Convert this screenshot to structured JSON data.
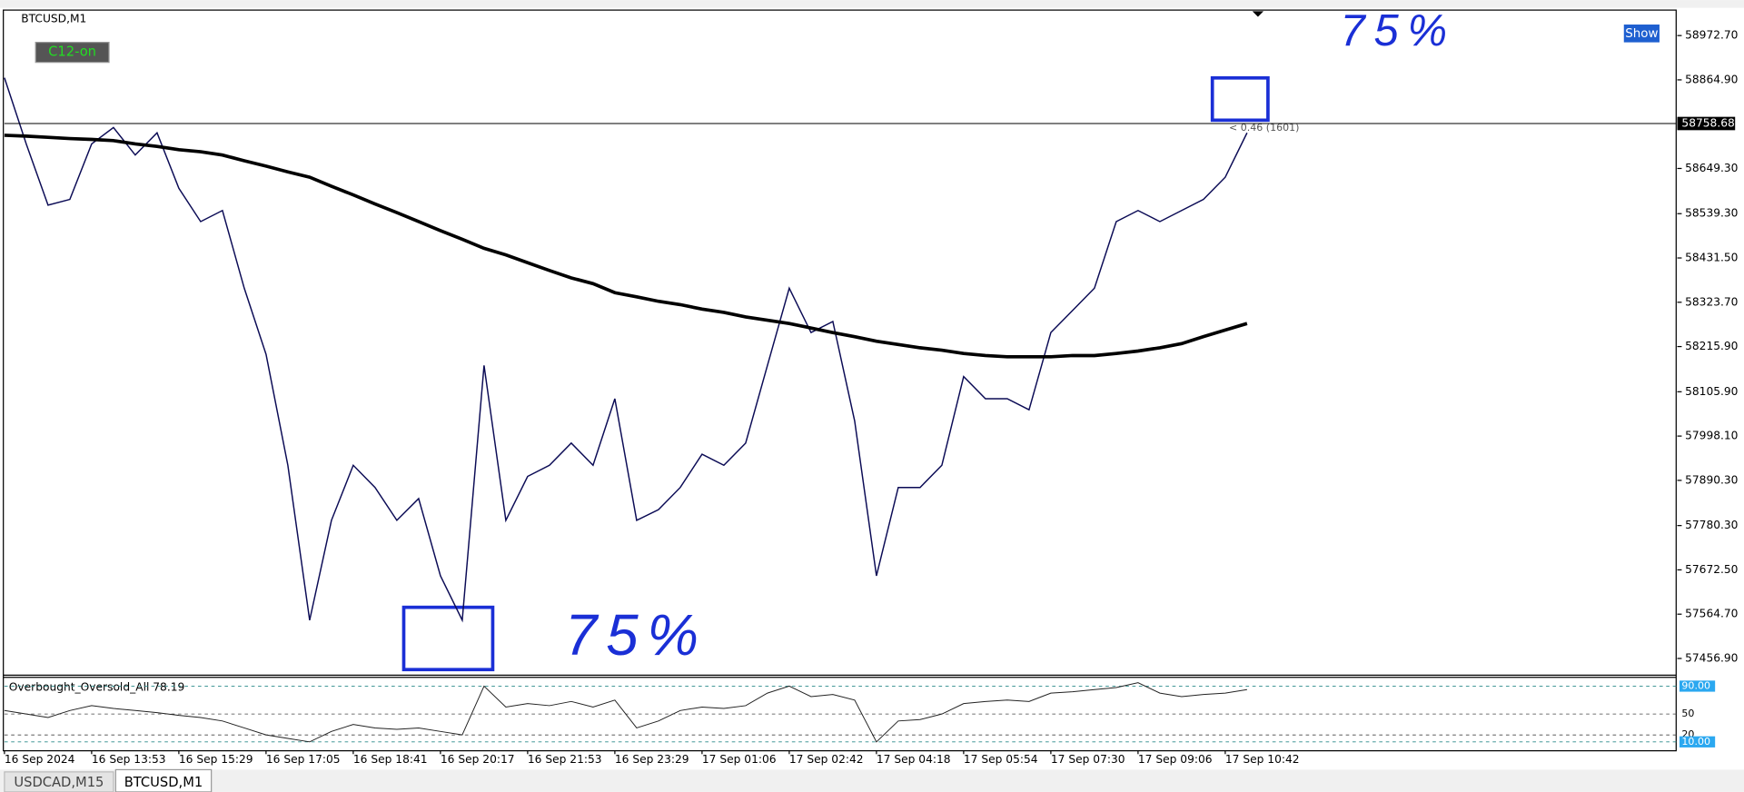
{
  "symbol_label": "BTCUSD,M1",
  "buttons": {
    "indicator": "C12-on",
    "show": "Show"
  },
  "tabs": [
    "USDCAD,M15",
    "BTCUSD,M1"
  ],
  "chart_data": [
    {
      "type": "line",
      "categories": [
        "16 Sep 2024",
        null,
        null,
        null,
        "16 Sep 13:53",
        null,
        null,
        null,
        "16 Sep 15:29",
        null,
        null,
        null,
        "16 Sep 17:05",
        null,
        null,
        null,
        "16 Sep 18:41",
        null,
        null,
        null,
        "16 Sep 20:17",
        null,
        null,
        null,
        "16 Sep 21:53",
        null,
        null,
        null,
        "16 Sep 23:29",
        null,
        null,
        null,
        "17 Sep 01:06",
        null,
        null,
        null,
        "17 Sep 02:42",
        null,
        null,
        null,
        "17 Sep 04:18",
        null,
        null,
        null,
        "17 Sep 05:54",
        null,
        null,
        null,
        "17 Sep 07:30",
        null,
        null,
        null,
        "17 Sep 09:06",
        null,
        null,
        null,
        "17 Sep 10:42",
        null
      ],
      "series": [
        {
          "name": "BTCUSD",
          "color": "#0b0b55",
          "values": [
            58870,
            58709,
            58560,
            58574,
            58709,
            58749,
            58682,
            58736,
            58601,
            58520,
            58547,
            58358,
            58197,
            57927,
            57550,
            57793,
            57927,
            57873,
            57793,
            57846,
            57658,
            57550,
            58170,
            57793,
            57900,
            57927,
            57981,
            57927,
            58089,
            57793,
            57819,
            57873,
            57954,
            57927,
            57981,
            58170,
            58358,
            58250,
            58277,
            58035,
            57658,
            57873,
            57873,
            57927,
            58143,
            58089,
            58089,
            58062,
            58250,
            58304,
            58358,
            58520,
            58547,
            58520,
            58547,
            58574,
            58628,
            58736
          ]
        },
        {
          "name": "MA",
          "color": "#000000",
          "values": [
            58730,
            58728,
            58725,
            58722,
            58720,
            58717,
            58709,
            58703,
            58695,
            58690,
            58682,
            58668,
            58655,
            58641,
            58628,
            58606,
            58585,
            58563,
            58542,
            58520,
            58498,
            58477,
            58455,
            58439,
            58420,
            58401,
            58383,
            58369,
            58347,
            58337,
            58326,
            58318,
            58307,
            58299,
            58288,
            58280,
            58272,
            58261,
            58250,
            58240,
            58229,
            58221,
            58213,
            58207,
            58199,
            58194,
            58191,
            58191,
            58191,
            58194,
            58194,
            58199,
            58205,
            58213,
            58223,
            58240,
            58256,
            58272
          ]
        }
      ],
      "ylim": [
        57419,
        59032
      ],
      "yticks": [
        {
          "value": 58972.7,
          "label": "58972.70"
        },
        {
          "value": 58864.9,
          "label": "58864.90"
        },
        {
          "value": 58649.3,
          "label": "58649.30"
        },
        {
          "value": 58539.3,
          "label": "58539.30"
        },
        {
          "value": 58431.5,
          "label": "58431.50"
        },
        {
          "value": 58323.7,
          "label": "58323.70"
        },
        {
          "value": 58215.9,
          "label": "58215.90"
        },
        {
          "value": 58105.9,
          "label": "58105.90"
        },
        {
          "value": 57998.1,
          "label": "57998.10"
        },
        {
          "value": 57890.3,
          "label": "57890.30"
        },
        {
          "value": 57780.3,
          "label": "57780.30"
        },
        {
          "value": 57672.5,
          "label": "57672.50"
        },
        {
          "value": 57564.7,
          "label": "57564.70"
        },
        {
          "value": 57456.9,
          "label": "57456.90"
        }
      ],
      "current_price": 58758.68,
      "annotations": [
        "75%",
        "75%",
        "< 0.46 (1601)"
      ]
    },
    {
      "type": "line",
      "title": "Overbought_Oversold_All 78.19",
      "series": [
        {
          "name": "Overbought_Oversold_All",
          "color": "#222222",
          "values": [
            55,
            50,
            45,
            55,
            62,
            58,
            55,
            52,
            48,
            45,
            40,
            30,
            20,
            15,
            10,
            25,
            35,
            30,
            28,
            30,
            25,
            20,
            90,
            60,
            65,
            62,
            68,
            60,
            70,
            30,
            40,
            55,
            60,
            58,
            62,
            80,
            90,
            75,
            78,
            70,
            10,
            40,
            42,
            50,
            65,
            68,
            70,
            68,
            80,
            82,
            85,
            88,
            95,
            80,
            75,
            78,
            80,
            85
          ]
        }
      ],
      "ylim": [
        2,
        101
      ],
      "yticks": [
        {
          "value": 90,
          "label": "90.00"
        },
        50,
        20,
        {
          "value": 10,
          "label": "10.00"
        }
      ]
    }
  ]
}
